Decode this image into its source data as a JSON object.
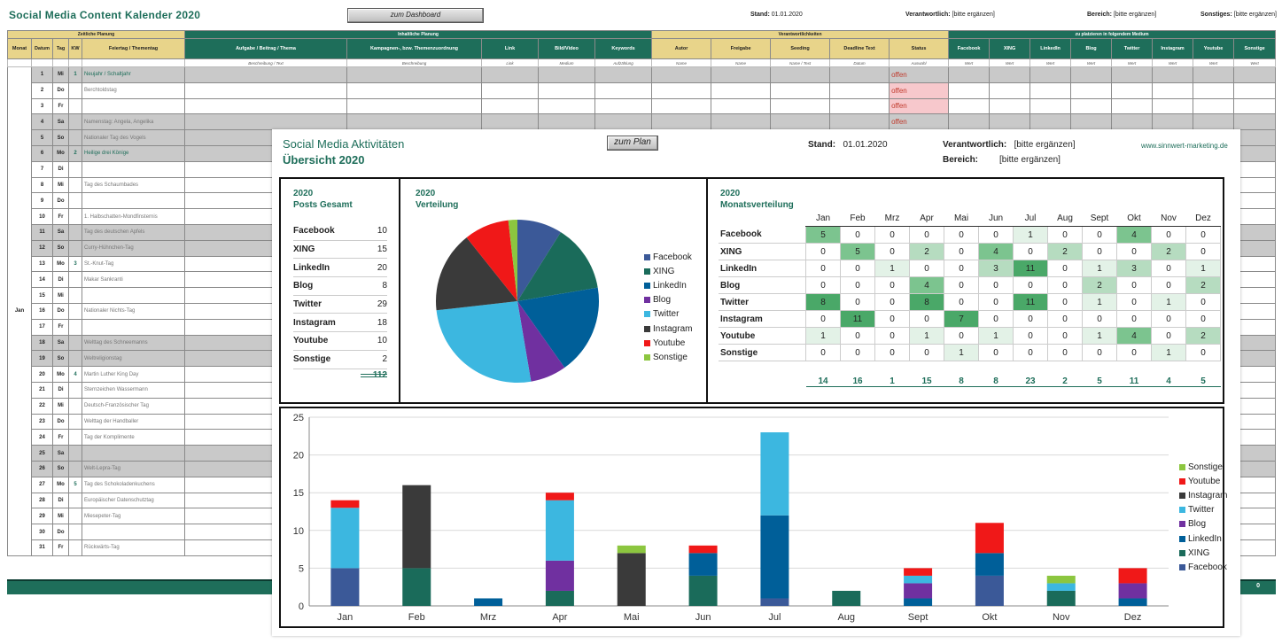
{
  "sheet": {
    "title": "Social Media Content Kalender 2020",
    "dashboard_button": "zum Dashboard",
    "stand_label": "Stand:",
    "stand_value": "01.01.2020",
    "verantwortlich_label": "Verantwortlich:",
    "verantwortlich_value": "[bitte ergänzen]",
    "bereich_label": "Bereich:",
    "bereich_value": "[bitte ergänzen]",
    "sonstiges_label": "Sonstiges:",
    "sonstiges_value": "[bitte ergänzen]",
    "groups": [
      "Zeitliche Planung",
      "Inhaltliche Planung",
      "Verantwortlichkeiten",
      "zu platzieren in folgendem Medium"
    ],
    "columns": [
      "Monat",
      "Datum",
      "Tag",
      "KW",
      "Feiertag / Thementag",
      "Aufgabe / Beitrag / Thema",
      "Kampagnen-, bzw. Themenzuordnung",
      "Link",
      "Bild/Video",
      "Keywords",
      "Autor",
      "Freigabe",
      "Seeding",
      "Deadline Text",
      "Status",
      "Facebook",
      "XING",
      "LinkedIn",
      "Blog",
      "Twitter",
      "Instagram",
      "Youtube",
      "Sonstige"
    ],
    "subheaders": [
      "",
      "",
      "",
      "",
      "",
      "Beschreibung / Text",
      "Beschreibung",
      "Link",
      "Medium",
      "Aufzählung",
      "Name",
      "Name",
      "Name / Text",
      "Datum",
      "Auswahl",
      "Wert",
      "Wert",
      "Wert",
      "Wert",
      "Wert",
      "Wert",
      "Wert",
      "Wert"
    ],
    "month": "Jan",
    "status_text": "offen",
    "footer_total": "0",
    "rows": [
      {
        "d": "1",
        "t": "Mi",
        "kw": "1",
        "h": "Neujahr / Schaltjahr",
        "we": true,
        "green": true
      },
      {
        "d": "2",
        "t": "Do",
        "kw": "",
        "h": "Berchtoldstag",
        "we": false,
        "green": false
      },
      {
        "d": "3",
        "t": "Fr",
        "kw": "",
        "h": "",
        "we": false,
        "green": false
      },
      {
        "d": "4",
        "t": "Sa",
        "kw": "",
        "h": "Namenstag: Angela, Angelika",
        "we": true,
        "green": false
      },
      {
        "d": "5",
        "t": "So",
        "kw": "",
        "h": "Nationaler Tag des Vogels",
        "we": true,
        "green": false
      },
      {
        "d": "6",
        "t": "Mo",
        "kw": "2",
        "h": "Heilige drei Könige",
        "we": true,
        "green": true
      },
      {
        "d": "7",
        "t": "Di",
        "kw": "",
        "h": "",
        "we": false,
        "green": false
      },
      {
        "d": "8",
        "t": "Mi",
        "kw": "",
        "h": "Tag des Schaumbades",
        "we": false,
        "green": false
      },
      {
        "d": "9",
        "t": "Do",
        "kw": "",
        "h": "",
        "we": false,
        "green": false
      },
      {
        "d": "10",
        "t": "Fr",
        "kw": "",
        "h": "1. Halbschatten-Mondfinsternis",
        "we": false,
        "green": false
      },
      {
        "d": "11",
        "t": "Sa",
        "kw": "",
        "h": "Tag des deutschen Apfels",
        "we": true,
        "green": false
      },
      {
        "d": "12",
        "t": "So",
        "kw": "",
        "h": "Curry-Hühnchen-Tag",
        "we": true,
        "green": false
      },
      {
        "d": "13",
        "t": "Mo",
        "kw": "3",
        "h": "St.-Knut-Tag",
        "we": false,
        "green": false
      },
      {
        "d": "14",
        "t": "Di",
        "kw": "",
        "h": "Makar Sankranti",
        "we": false,
        "green": false
      },
      {
        "d": "15",
        "t": "Mi",
        "kw": "",
        "h": "",
        "we": false,
        "green": false
      },
      {
        "d": "16",
        "t": "Do",
        "kw": "",
        "h": "Nationaler Nichts-Tag",
        "we": false,
        "green": false
      },
      {
        "d": "17",
        "t": "Fr",
        "kw": "",
        "h": "",
        "we": false,
        "green": false
      },
      {
        "d": "18",
        "t": "Sa",
        "kw": "",
        "h": "Welttag des Schneemanns",
        "we": true,
        "green": false
      },
      {
        "d": "19",
        "t": "So",
        "kw": "",
        "h": "Weltreligionstag",
        "we": true,
        "green": false
      },
      {
        "d": "20",
        "t": "Mo",
        "kw": "4",
        "h": "Martin Luther King Day",
        "we": false,
        "green": false
      },
      {
        "d": "21",
        "t": "Di",
        "kw": "",
        "h": "Sternzeichen Wassermann",
        "we": false,
        "green": false
      },
      {
        "d": "22",
        "t": "Mi",
        "kw": "",
        "h": "Deutsch-Französischer Tag",
        "we": false,
        "green": false
      },
      {
        "d": "23",
        "t": "Do",
        "kw": "",
        "h": "Welttag der Handballer",
        "we": false,
        "green": false
      },
      {
        "d": "24",
        "t": "Fr",
        "kw": "",
        "h": "Tag der Komplimente",
        "we": false,
        "green": false
      },
      {
        "d": "25",
        "t": "Sa",
        "kw": "",
        "h": "",
        "we": true,
        "green": false
      },
      {
        "d": "26",
        "t": "So",
        "kw": "",
        "h": "Welt-Lepra-Tag",
        "we": true,
        "green": false
      },
      {
        "d": "27",
        "t": "Mo",
        "kw": "5",
        "h": "Tag des Schokoladenkuchens",
        "we": false,
        "green": false
      },
      {
        "d": "28",
        "t": "Di",
        "kw": "",
        "h": "Europäischer Datenschutztag",
        "we": false,
        "green": false
      },
      {
        "d": "29",
        "t": "Mi",
        "kw": "",
        "h": "Miesepeter-Tag",
        "we": false,
        "green": false
      },
      {
        "d": "30",
        "t": "Do",
        "kw": "",
        "h": "",
        "we": false,
        "green": false
      },
      {
        "d": "31",
        "t": "Fr",
        "kw": "",
        "h": "Rückwärts-Tag",
        "we": false,
        "green": false
      }
    ]
  },
  "dashboard": {
    "title1": "Social Media Aktivitäten",
    "title2": "Übersicht 2020",
    "plan_button": "zum Plan",
    "stand_label": "Stand:",
    "stand_value": "01.01.2020",
    "verantwortlich_label": "Verantwortlich:",
    "verantwortlich_value": "[bitte ergänzen]",
    "bereich_label": "Bereich:",
    "bereich_value": "[bitte ergänzen]",
    "website": "www.sinnwert-marketing.de",
    "posts_year": "2020",
    "posts_title": "Posts Gesamt",
    "pie_year": "2020",
    "pie_title": "Verteilung",
    "month_year": "2020",
    "month_title": "Monatsverteilung",
    "posts_total": "112"
  },
  "colors": {
    "Facebook": "#3b5998",
    "XING": "#1a6b5a",
    "LinkedIn": "#005f99",
    "Blog": "#7030a0",
    "Twitter": "#3cb7e0",
    "Instagram": "#3a3a3a",
    "Youtube": "#f01818",
    "Sonstige": "#8cc63f"
  },
  "month_colors": {
    "heat": [
      "#ffffff",
      "#e3f2e7",
      "#b6dcc0",
      "#7cc48f",
      "#4aa868"
    ]
  },
  "chart_data": [
    {
      "type": "table",
      "title": "Posts Gesamt",
      "rows": [
        [
          "Facebook",
          10
        ],
        [
          "XING",
          15
        ],
        [
          "LinkedIn",
          20
        ],
        [
          "Blog",
          8
        ],
        [
          "Twitter",
          29
        ],
        [
          "Instagram",
          18
        ],
        [
          "Youtube",
          10
        ],
        [
          "Sonstige",
          2
        ]
      ],
      "total": 112
    },
    {
      "type": "pie",
      "title": "Verteilung",
      "labels": [
        "Facebook",
        "XING",
        "LinkedIn",
        "Blog",
        "Twitter",
        "Instagram",
        "Youtube",
        "Sonstige"
      ],
      "values": [
        10,
        15,
        20,
        8,
        29,
        18,
        10,
        2
      ],
      "legend": "right"
    },
    {
      "type": "heatmap",
      "title": "Monatsverteilung",
      "months": [
        "Jan",
        "Feb",
        "Mrz",
        "Apr",
        "Mai",
        "Jun",
        "Jul",
        "Aug",
        "Sept",
        "Okt",
        "Nov",
        "Dez"
      ],
      "rows": [
        {
          "name": "Facebook",
          "values": [
            5,
            0,
            0,
            0,
            0,
            0,
            1,
            0,
            0,
            4,
            0,
            0
          ]
        },
        {
          "name": "XING",
          "values": [
            0,
            5,
            0,
            2,
            0,
            4,
            0,
            2,
            0,
            0,
            2,
            0
          ]
        },
        {
          "name": "LinkedIn",
          "values": [
            0,
            0,
            1,
            0,
            0,
            3,
            11,
            0,
            1,
            3,
            0,
            1
          ]
        },
        {
          "name": "Blog",
          "values": [
            0,
            0,
            0,
            4,
            0,
            0,
            0,
            0,
            2,
            0,
            0,
            2
          ]
        },
        {
          "name": "Twitter",
          "values": [
            8,
            0,
            0,
            8,
            0,
            0,
            11,
            0,
            1,
            0,
            1,
            0
          ]
        },
        {
          "name": "Instagram",
          "values": [
            0,
            11,
            0,
            0,
            7,
            0,
            0,
            0,
            0,
            0,
            0,
            0
          ]
        },
        {
          "name": "Youtube",
          "values": [
            1,
            0,
            0,
            1,
            0,
            1,
            0,
            0,
            1,
            4,
            0,
            2
          ]
        },
        {
          "name": "Sonstige",
          "values": [
            0,
            0,
            0,
            0,
            1,
            0,
            0,
            0,
            0,
            0,
            1,
            0
          ]
        }
      ],
      "totals": [
        14,
        16,
        1,
        15,
        8,
        8,
        23,
        2,
        5,
        11,
        4,
        5
      ]
    },
    {
      "type": "bar",
      "stacked": true,
      "categories": [
        "Jan",
        "Feb",
        "Mrz",
        "Apr",
        "Mai",
        "Jun",
        "Jul",
        "Aug",
        "Sept",
        "Okt",
        "Nov",
        "Dez"
      ],
      "ylim": [
        0,
        25
      ],
      "yticks": [
        0,
        5,
        10,
        15,
        20,
        25
      ],
      "grid": true,
      "legend": "right",
      "legend_order": [
        "Sonstige",
        "Youtube",
        "Instagram",
        "Twitter",
        "Blog",
        "LinkedIn",
        "XING",
        "Facebook"
      ],
      "series": [
        {
          "name": "Facebook",
          "values": [
            5,
            0,
            0,
            0,
            0,
            0,
            1,
            0,
            0,
            4,
            0,
            0
          ]
        },
        {
          "name": "XING",
          "values": [
            0,
            5,
            0,
            2,
            0,
            4,
            0,
            2,
            0,
            0,
            2,
            0
          ]
        },
        {
          "name": "LinkedIn",
          "values": [
            0,
            0,
            1,
            0,
            0,
            3,
            11,
            0,
            1,
            3,
            0,
            1
          ]
        },
        {
          "name": "Blog",
          "values": [
            0,
            0,
            0,
            4,
            0,
            0,
            0,
            0,
            2,
            0,
            0,
            2
          ]
        },
        {
          "name": "Twitter",
          "values": [
            8,
            0,
            0,
            8,
            0,
            0,
            11,
            0,
            1,
            0,
            1,
            0
          ]
        },
        {
          "name": "Instagram",
          "values": [
            0,
            11,
            0,
            0,
            7,
            0,
            0,
            0,
            0,
            0,
            0,
            0
          ]
        },
        {
          "name": "Youtube",
          "values": [
            1,
            0,
            0,
            1,
            0,
            1,
            0,
            0,
            1,
            4,
            0,
            2
          ]
        },
        {
          "name": "Sonstige",
          "values": [
            0,
            0,
            0,
            0,
            1,
            0,
            0,
            0,
            0,
            0,
            1,
            0
          ]
        }
      ]
    }
  ]
}
